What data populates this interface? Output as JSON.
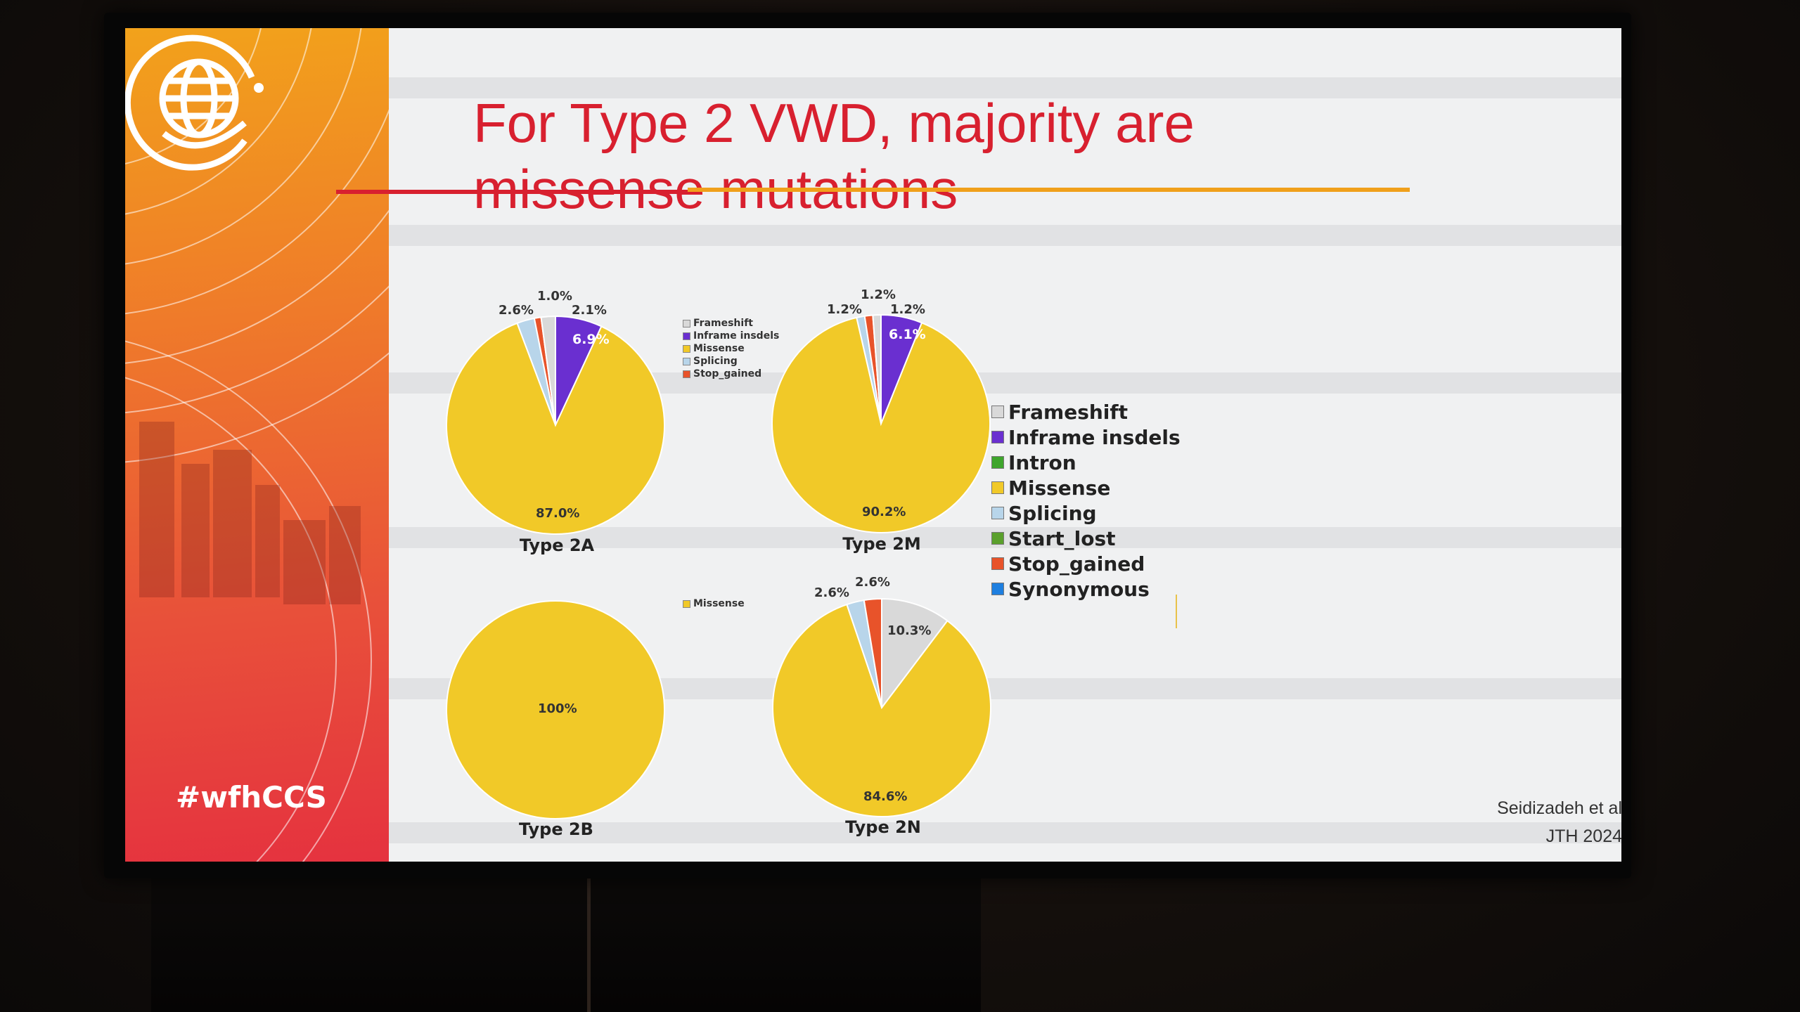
{
  "slide": {
    "title_line1": "For Type 2 VWD, majority are",
    "title_line2": "missense mutations",
    "hashtag": "#wfhCCS",
    "citation_line1": "Seidizadeh et al",
    "citation_line2": "JTH 2024"
  },
  "colors": {
    "Frameshift": "#d9d9d9",
    "Inframe insdels": "#6a2fd0",
    "Intron": "#3ea52c",
    "Missense": "#f1c928",
    "Splicing": "#b8d5ea",
    "Start_lost": "#5aa02c",
    "Stop_gained": "#e8532a",
    "Synonymous": "#1e7fe0"
  },
  "legend": {
    "items": [
      "Frameshift",
      "Inframe insdels",
      "Intron",
      "Missense",
      "Splicing",
      "Start_lost",
      "Stop_gained",
      "Synonymous"
    ]
  },
  "mini_legend_top": [
    "Frameshift",
    "Inframe insdels",
    "Missense",
    "Splicing",
    "Stop_gained"
  ],
  "mini_legend_bottom": [
    "Missense"
  ],
  "chart_data": [
    {
      "type": "pie",
      "title": "Type 2A",
      "slices": [
        {
          "label": "Inframe insdels",
          "value": 6.9,
          "text": "6.9%"
        },
        {
          "label": "Missense",
          "value": 87.0,
          "text": "87.0%"
        },
        {
          "label": "Splicing",
          "value": 2.6,
          "text": "2.6%"
        },
        {
          "label": "Stop_gained",
          "value": 1.0,
          "text": "1.0%"
        },
        {
          "label": "Frameshift",
          "value": 2.1,
          "text": "2.1%"
        }
      ]
    },
    {
      "type": "pie",
      "title": "Type 2M",
      "slices": [
        {
          "label": "Inframe insdels",
          "value": 6.1,
          "text": "6.1%"
        },
        {
          "label": "Missense",
          "value": 90.2,
          "text": "90.2%"
        },
        {
          "label": "Splicing",
          "value": 1.2,
          "text": "1.2%"
        },
        {
          "label": "Stop_gained",
          "value": 1.2,
          "text": "1.2%"
        },
        {
          "label": "Frameshift",
          "value": 1.2,
          "text": "1.2%"
        }
      ]
    },
    {
      "type": "pie",
      "title": "Type 2B",
      "slices": [
        {
          "label": "Missense",
          "value": 100,
          "text": "100%"
        }
      ]
    },
    {
      "type": "pie",
      "title": "Type 2N",
      "slices": [
        {
          "label": "Frameshift",
          "value": 10.3,
          "text": "10.3%"
        },
        {
          "label": "Missense",
          "value": 84.6,
          "text": "84.6%"
        },
        {
          "label": "Splicing",
          "value": 2.6,
          "text": "2.6%"
        },
        {
          "label": "Stop_gained",
          "value": 2.6,
          "text": "2.6%"
        }
      ]
    }
  ]
}
